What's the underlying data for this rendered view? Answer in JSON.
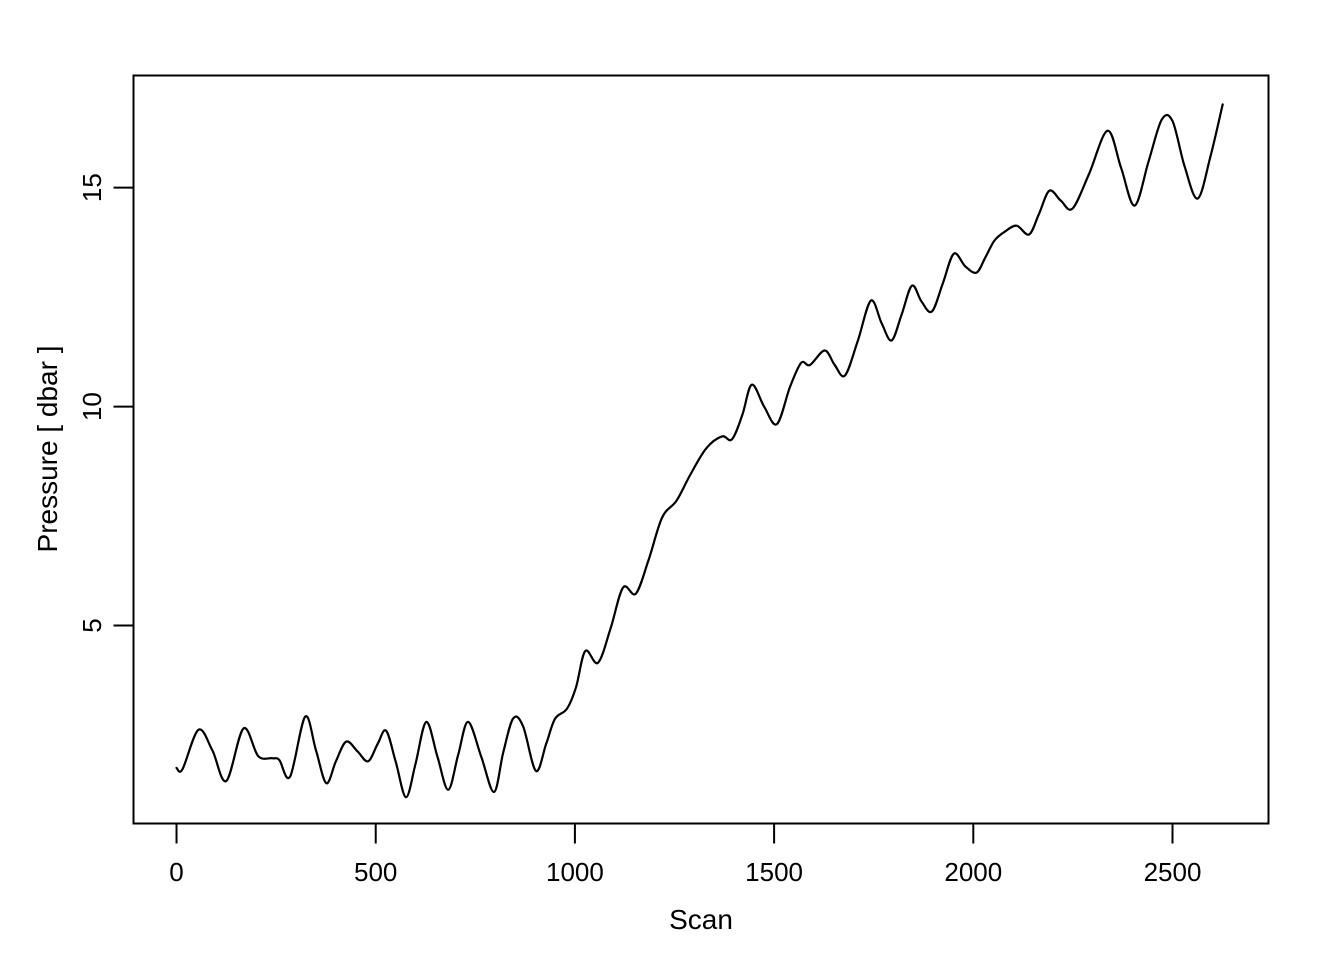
{
  "figure": {
    "background": "#ffffff",
    "line_color": "#000000",
    "frame_color": "#000000"
  },
  "chart_data": {
    "type": "line",
    "title": "",
    "xlabel": "Scan",
    "ylabel": "Pressure [ dbar ]",
    "xlim": [
      -108,
      2741
    ],
    "ylim": [
      0.48,
      17.56
    ],
    "x_ticks": [
      0,
      500,
      1000,
      1500,
      2000,
      2500
    ],
    "x_tick_labels": [
      "0",
      "500",
      "1000",
      "1500",
      "2000",
      "2500"
    ],
    "y_ticks": [
      5,
      10,
      15
    ],
    "y_tick_labels": [
      "5",
      "10",
      "15"
    ],
    "grid": false,
    "legend": null,
    "series": [
      {
        "name": "pressure",
        "x": [
          0,
          15,
          55,
          90,
          125,
          168,
          205,
          240,
          258,
          285,
          323,
          350,
          376,
          400,
          426,
          455,
          481,
          505,
          526,
          550,
          576,
          600,
          627,
          655,
          682,
          707,
          732,
          765,
          797,
          820,
          845,
          870,
          902,
          928,
          950,
          980,
          1003,
          1026,
          1058,
          1090,
          1121,
          1153,
          1185,
          1219,
          1255,
          1290,
          1330,
          1369,
          1394,
          1420,
          1444,
          1475,
          1507,
          1540,
          1568,
          1590,
          1627,
          1652,
          1678,
          1710,
          1743,
          1770,
          1795,
          1820,
          1846,
          1870,
          1896,
          1923,
          1951,
          1980,
          2008,
          2030,
          2053,
          2080,
          2109,
          2140,
          2165,
          2191,
          2220,
          2249,
          2290,
          2337,
          2371,
          2405,
          2440,
          2473,
          2500,
          2530,
          2563,
          2595,
          2626
        ],
        "y": [
          1.75,
          1.72,
          2.62,
          2.15,
          1.45,
          2.65,
          2.02,
          1.97,
          1.93,
          1.55,
          2.92,
          2.15,
          1.4,
          1.9,
          2.35,
          2.12,
          1.9,
          2.3,
          2.6,
          1.9,
          1.08,
          1.85,
          2.8,
          2.0,
          1.25,
          2.05,
          2.8,
          2.0,
          1.2,
          2.1,
          2.88,
          2.7,
          1.68,
          2.3,
          2.87,
          3.1,
          3.6,
          4.42,
          4.15,
          4.95,
          5.87,
          5.73,
          6.5,
          7.47,
          7.85,
          8.45,
          9.05,
          9.32,
          9.25,
          9.8,
          10.5,
          10.0,
          9.6,
          10.45,
          11.0,
          10.95,
          11.28,
          10.95,
          10.71,
          11.5,
          12.42,
          11.9,
          11.51,
          12.1,
          12.76,
          12.4,
          12.17,
          12.8,
          13.49,
          13.2,
          13.06,
          13.4,
          13.79,
          14.0,
          14.13,
          13.93,
          14.4,
          14.93,
          14.7,
          14.52,
          15.3,
          16.3,
          15.45,
          14.59,
          15.6,
          16.55,
          16.52,
          15.5,
          14.75,
          15.7,
          16.9
        ]
      }
    ]
  }
}
